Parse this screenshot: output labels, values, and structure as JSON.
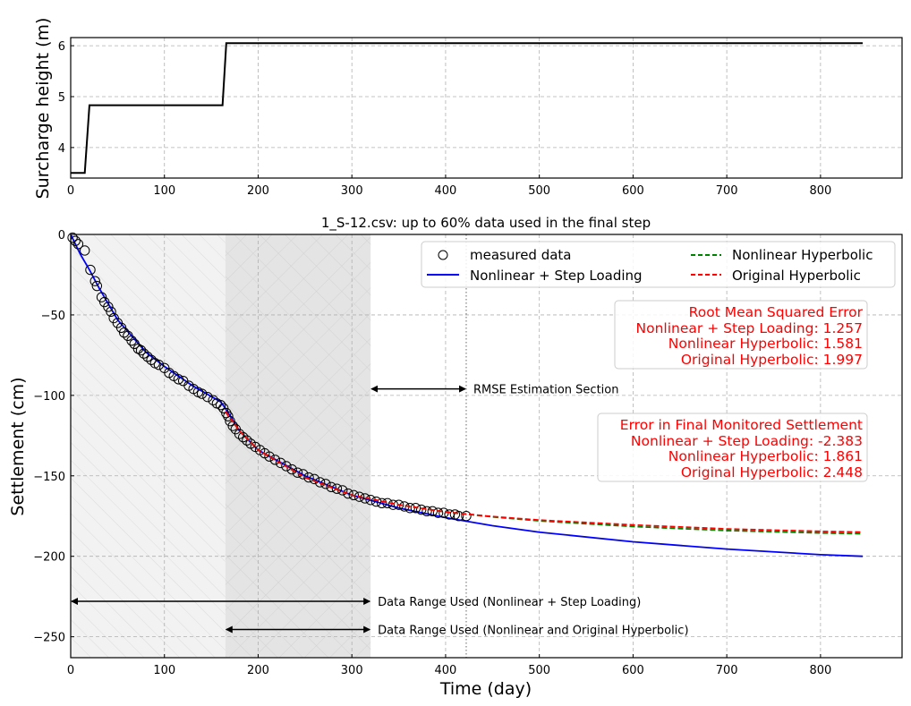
{
  "chart_data": [
    {
      "type": "line",
      "ylabel": "Surcharge height (m)",
      "xlim": [
        0,
        887
      ],
      "ylim": [
        3.4,
        6.16
      ],
      "xticks": [
        "0",
        "100",
        "200",
        "300",
        "400",
        "500",
        "600",
        "700",
        "800"
      ],
      "yticks": [
        "4",
        "5",
        "6"
      ],
      "grid": true,
      "series": [
        {
          "color": "#000000",
          "x": [
            0,
            15,
            20,
            162,
            166,
            845
          ],
          "y": [
            3.5,
            3.5,
            4.83,
            4.83,
            6.05,
            6.05
          ]
        }
      ]
    },
    {
      "type": "line",
      "title": "1_S-12.csv: up to 60% data used in the final step",
      "xlabel": "Time (day)",
      "ylabel": "Settlement (cm)",
      "xlim": [
        0,
        887
      ],
      "ylim": [
        -263,
        0
      ],
      "xticks": [
        "0",
        "100",
        "200",
        "300",
        "400",
        "500",
        "600",
        "700",
        "800"
      ],
      "yticks": [
        "0",
        "−50",
        "−100",
        "−150",
        "−200",
        "−250"
      ],
      "grid": true,
      "legend_placement": "top-right",
      "shaded_regions": [
        {
          "from": 0,
          "to": 165,
          "color": "#f2f2f2",
          "hatch": "/"
        },
        {
          "from": 165,
          "to": 320,
          "color": "#e4e4e4",
          "hatch": "x"
        }
      ],
      "vertical_line": {
        "x": 422,
        "style": "dotted"
      },
      "series": [
        {
          "name": "measured data",
          "kind": "scatter",
          "color": "#000000",
          "x": [
            2,
            5,
            8,
            15,
            21,
            26,
            28,
            33,
            36,
            40,
            43,
            46,
            50,
            54,
            57,
            61,
            65,
            68,
            72,
            75,
            78,
            82,
            86,
            90,
            94,
            100,
            105,
            110,
            115,
            120,
            126,
            131,
            136,
            140,
            146,
            152,
            156,
            160,
            163,
            166,
            168,
            170,
            173,
            176,
            180,
            184,
            188,
            192,
            197,
            202,
            207,
            212,
            218,
            224,
            230,
            236,
            242,
            248,
            254,
            260,
            266,
            272,
            278,
            284,
            290,
            296,
            302,
            308,
            314,
            320,
            326,
            332,
            338,
            344,
            350,
            356,
            362,
            368,
            374,
            380,
            386,
            392,
            398,
            404,
            410,
            414,
            422
          ],
          "y": [
            -2,
            -4,
            -6,
            -10,
            -22,
            -29,
            -32,
            -39,
            -42,
            -45,
            -48,
            -52,
            -55,
            -58,
            -61,
            -63,
            -66,
            -68,
            -71,
            -72,
            -74,
            -76,
            -78,
            -80,
            -81,
            -83,
            -86,
            -88,
            -90,
            -91,
            -94,
            -96,
            -98,
            -99,
            -101,
            -103,
            -105,
            -106,
            -108,
            -111,
            -113,
            -116,
            -119,
            -121,
            -124,
            -126,
            -128,
            -130,
            -132,
            -134,
            -136,
            -138,
            -140,
            -142,
            -144,
            -146,
            -148,
            -149,
            -151,
            -152,
            -154,
            -155,
            -157,
            -158,
            -159,
            -161,
            -162,
            -163,
            -164,
            -165,
            -166,
            -167,
            -167,
            -168,
            -168,
            -169,
            -170,
            -170,
            -171,
            -172,
            -172,
            -173,
            -173,
            -174,
            -174,
            -175,
            -175
          ]
        },
        {
          "name": "Nonlinear + Step Loading",
          "kind": "line",
          "color": "#0000ff",
          "x": [
            0,
            10,
            20,
            30,
            50,
            80,
            100,
            130,
            160,
            165,
            180,
            200,
            250,
            300,
            350,
            400,
            450,
            500,
            600,
            700,
            800,
            845
          ],
          "y": [
            0,
            -12,
            -22,
            -33,
            -53,
            -73,
            -82,
            -94,
            -104,
            -108,
            -122,
            -134,
            -150,
            -162,
            -170,
            -176,
            -181,
            -185,
            -191,
            -195.5,
            -199,
            -200
          ]
        },
        {
          "name": "Nonlinear Hyperbolic",
          "kind": "dashed",
          "color": "#008000",
          "x": [
            165,
            180,
            200,
            250,
            300,
            350,
            400,
            450,
            500,
            600,
            700,
            800,
            845
          ],
          "y": [
            -110,
            -122,
            -134,
            -151,
            -162,
            -168,
            -172.5,
            -175.5,
            -178,
            -181.5,
            -184,
            -185.5,
            -186
          ]
        },
        {
          "name": "Original Hyperbolic",
          "kind": "dashed",
          "color": "#ff0000",
          "x": [
            165,
            180,
            200,
            250,
            300,
            350,
            400,
            450,
            500,
            600,
            700,
            800,
            845
          ],
          "y": [
            -110,
            -122,
            -134,
            -151,
            -162,
            -168,
            -172.5,
            -175.3,
            -177.5,
            -180.5,
            -183,
            -184.5,
            -185
          ]
        }
      ],
      "annotations": {
        "rmse_arrow": {
          "label": "RMSE Estimation Section",
          "from": 320,
          "to": 422,
          "y": -96
        },
        "range1": {
          "label": "Data Range Used (Nonlinear + Step Loading)",
          "from": 0,
          "to": 320,
          "y": -228
        },
        "range2": {
          "label": "Data Range Used (Nonlinear and Original Hyperbolic)",
          "from": 165,
          "to": 320,
          "y": -245.5
        }
      },
      "rmse_box": {
        "title": "Root Mean Squared Error",
        "lines": [
          "Nonlinear + Step Loading: 1.257",
          "Nonlinear Hyperbolic: 1.581",
          "Original Hyperbolic: 1.997"
        ]
      },
      "error_box": {
        "title": "Error in Final Monitored Settlement",
        "lines": [
          "Nonlinear + Step Loading: -2.383",
          "Nonlinear Hyperbolic: 1.861",
          "Original Hyperbolic: 2.448"
        ]
      }
    }
  ]
}
